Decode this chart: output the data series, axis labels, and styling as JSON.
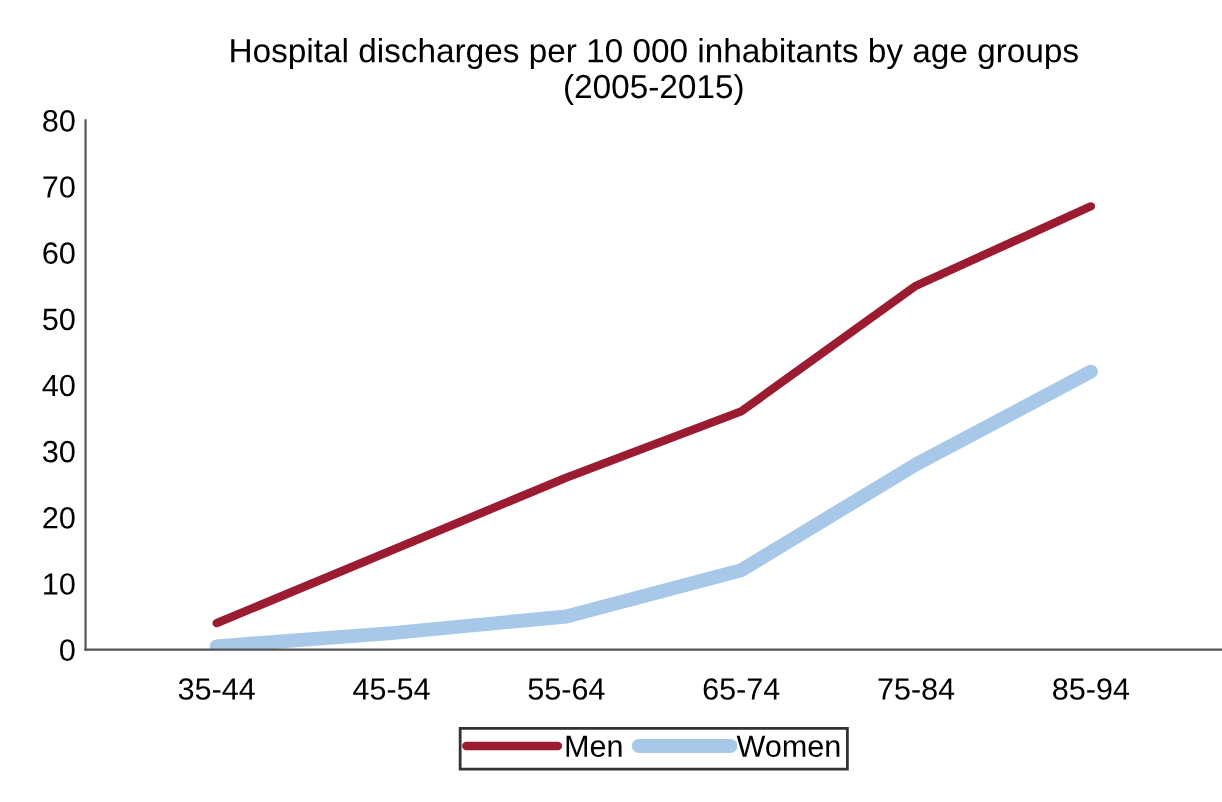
{
  "chart_data": {
    "type": "line",
    "title": "Hospital discharges per 10 000 inhabitants by age groups\n(2005-2015)",
    "categories": [
      "35-44",
      "45-54",
      "55-64",
      "65-74",
      "75-84",
      "85-94"
    ],
    "series": [
      {
        "name": "Men",
        "color": "#9b1b30",
        "values": [
          4,
          15,
          26,
          36,
          55,
          67
        ]
      },
      {
        "name": "Women",
        "color": "#a8c8ea",
        "values": [
          0.5,
          2.5,
          5,
          12,
          28,
          42
        ]
      }
    ],
    "ylim": [
      0,
      80
    ],
    "yticks": [
      0,
      10,
      20,
      30,
      40,
      50,
      60,
      70,
      80
    ],
    "grid": false,
    "legend": "bottom",
    "marker": "none",
    "line_style": "solid"
  }
}
